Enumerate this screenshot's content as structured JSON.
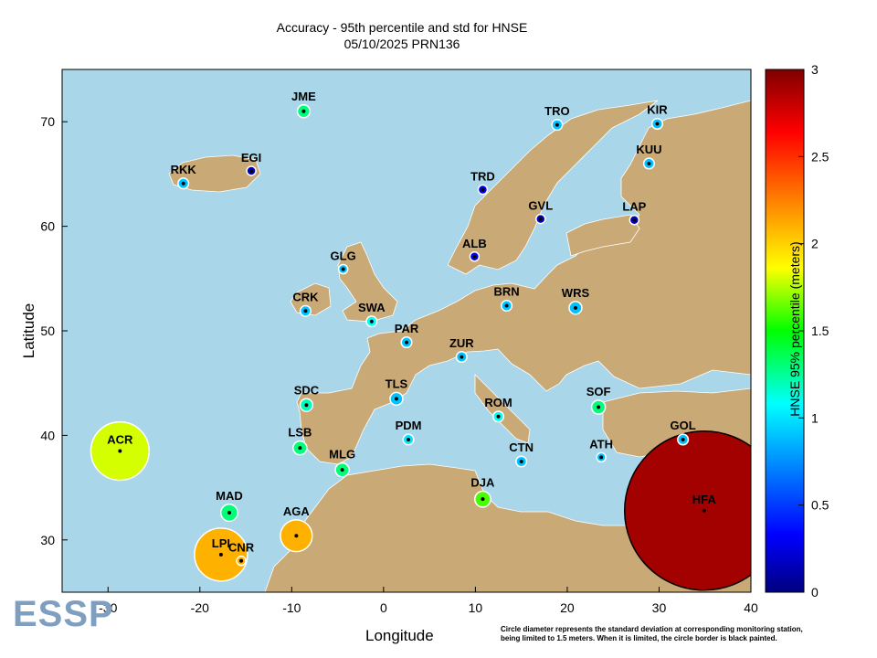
{
  "title_line1": "Accuracy - 95th percentile and std for HNSE",
  "title_line2": "05/10/2025 PRN136",
  "xlabel": "Longitude",
  "ylabel": "Latitude",
  "colorbar_label": "HNSE 95% percentile (meters)",
  "logo_text": "ESSP",
  "footnote_line1": "Circle diameter represents the standard deviation at corresponding monitoring station,",
  "footnote_line2": "being limited to 1.5 meters. When it is limited, the circle border is black painted.",
  "colors": {
    "sea": "#a9d6e8",
    "land": "#c9aa76",
    "border": "#ffffff"
  },
  "chart_data": {
    "type": "map-scatter",
    "xlim": [
      -35,
      40
    ],
    "ylim": [
      25,
      75
    ],
    "x_ticks": [
      -30,
      -20,
      -10,
      0,
      10,
      20,
      30,
      40
    ],
    "y_ticks": [
      30,
      40,
      50,
      60,
      70
    ],
    "colorbar": {
      "min": 0,
      "max": 3,
      "ticks": [
        0,
        0.5,
        1,
        1.5,
        2,
        2.5,
        3
      ]
    },
    "stations": [
      {
        "name": "JME",
        "lon": -8.7,
        "lat": 71.0,
        "hnse95": 1.3,
        "std": 0.12
      },
      {
        "name": "TRO",
        "lon": 18.9,
        "lat": 69.7,
        "hnse95": 0.9,
        "std": 0.1
      },
      {
        "name": "KIR",
        "lon": 29.8,
        "lat": 69.8,
        "hnse95": 0.9,
        "std": 0.1
      },
      {
        "name": "EGI",
        "lon": -14.4,
        "lat": 65.3,
        "hnse95": 0.2,
        "std": 0.05
      },
      {
        "name": "RKK",
        "lon": -21.8,
        "lat": 64.1,
        "hnse95": 0.9,
        "std": 0.1
      },
      {
        "name": "KUU",
        "lon": 28.9,
        "lat": 66.0,
        "hnse95": 0.9,
        "std": 0.1
      },
      {
        "name": "TRD",
        "lon": 10.8,
        "lat": 63.5,
        "hnse95": 0.3,
        "std": 0.05
      },
      {
        "name": "GVL",
        "lon": 17.1,
        "lat": 60.7,
        "hnse95": 0.2,
        "std": 0.05
      },
      {
        "name": "LAP",
        "lon": 27.3,
        "lat": 60.6,
        "hnse95": 0.2,
        "std": 0.05
      },
      {
        "name": "ALB",
        "lon": 9.9,
        "lat": 57.1,
        "hnse95": 0.3,
        "std": 0.05
      },
      {
        "name": "GLG",
        "lon": -4.4,
        "lat": 55.9,
        "hnse95": 0.9,
        "std": 0.08
      },
      {
        "name": "CRK",
        "lon": -8.5,
        "lat": 51.9,
        "hnse95": 0.9,
        "std": 0.1
      },
      {
        "name": "SWA",
        "lon": -1.3,
        "lat": 50.9,
        "hnse95": 1.1,
        "std": 0.1
      },
      {
        "name": "BRN",
        "lon": 13.4,
        "lat": 52.4,
        "hnse95": 0.9,
        "std": 0.1
      },
      {
        "name": "WRS",
        "lon": 20.9,
        "lat": 52.2,
        "hnse95": 0.9,
        "std": 0.12
      },
      {
        "name": "PAR",
        "lon": 2.5,
        "lat": 48.9,
        "hnse95": 0.9,
        "std": 0.1
      },
      {
        "name": "ZUR",
        "lon": 8.5,
        "lat": 47.5,
        "hnse95": 0.9,
        "std": 0.1
      },
      {
        "name": "TLS",
        "lon": 1.4,
        "lat": 43.5,
        "hnse95": 0.9,
        "std": 0.12
      },
      {
        "name": "SDC",
        "lon": -8.4,
        "lat": 42.9,
        "hnse95": 1.2,
        "std": 0.12
      },
      {
        "name": "ROM",
        "lon": 12.5,
        "lat": 41.8,
        "hnse95": 1.1,
        "std": 0.1
      },
      {
        "name": "SOF",
        "lon": 23.4,
        "lat": 42.7,
        "hnse95": 1.3,
        "std": 0.13
      },
      {
        "name": "LSB",
        "lon": -9.1,
        "lat": 38.8,
        "hnse95": 1.3,
        "std": 0.13
      },
      {
        "name": "PDM",
        "lon": 2.7,
        "lat": 39.6,
        "hnse95": 1.0,
        "std": 0.1
      },
      {
        "name": "GOL",
        "lon": 32.6,
        "lat": 39.6,
        "hnse95": 0.9,
        "std": 0.1
      },
      {
        "name": "CTN",
        "lon": 15.0,
        "lat": 37.5,
        "hnse95": 0.9,
        "std": 0.1
      },
      {
        "name": "ATH",
        "lon": 23.7,
        "lat": 37.9,
        "hnse95": 0.9,
        "std": 0.08
      },
      {
        "name": "MLG",
        "lon": -4.5,
        "lat": 36.7,
        "hnse95": 1.3,
        "std": 0.13
      },
      {
        "name": "ACR",
        "lon": -28.7,
        "lat": 38.5,
        "hnse95": 1.8,
        "std": 0.55
      },
      {
        "name": "DJA",
        "lon": 10.8,
        "lat": 33.9,
        "hnse95": 1.6,
        "std": 0.15
      },
      {
        "name": "MAD",
        "lon": -16.8,
        "lat": 32.6,
        "hnse95": 1.3,
        "std": 0.16
      },
      {
        "name": "AGA",
        "lon": -9.5,
        "lat": 30.4,
        "hnse95": 2.1,
        "std": 0.3
      },
      {
        "name": "LPI",
        "lon": -17.7,
        "lat": 28.6,
        "hnse95": 2.1,
        "std": 0.5
      },
      {
        "name": "CNR",
        "lon": -15.5,
        "lat": 28.0,
        "hnse95": 2.1,
        "std": 0.02
      },
      {
        "name": "HFA",
        "lon": 34.9,
        "lat": 32.8,
        "hnse95": 2.9,
        "std": 1.5,
        "limited": true
      }
    ]
  }
}
